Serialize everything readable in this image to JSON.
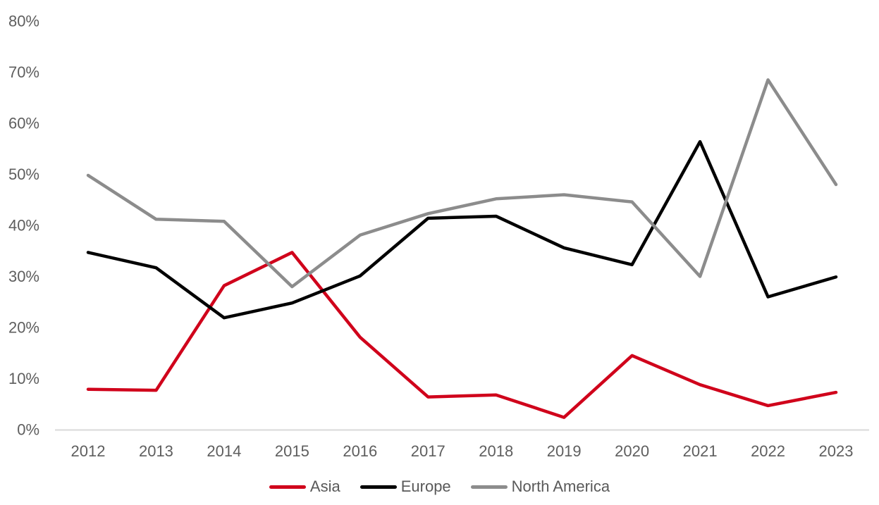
{
  "chart_data": {
    "type": "line",
    "title": "",
    "xlabel": "",
    "ylabel": "",
    "categories": [
      "2012",
      "2013",
      "2014",
      "2015",
      "2016",
      "2017",
      "2018",
      "2019",
      "2020",
      "2021",
      "2022",
      "2023"
    ],
    "series": [
      {
        "name": "Asia",
        "color": "#D0021B",
        "values": [
          7.9,
          7.7,
          28.2,
          34.7,
          18.1,
          6.4,
          6.8,
          2.4,
          14.5,
          8.8,
          4.7,
          7.3
        ]
      },
      {
        "name": "Europe",
        "color": "#000000",
        "values": [
          34.7,
          31.7,
          21.9,
          24.8,
          30.1,
          41.4,
          41.8,
          35.6,
          32.3,
          56.4,
          26.0,
          29.9
        ]
      },
      {
        "name": "North America",
        "color": "#8C8C8C",
        "values": [
          49.8,
          41.2,
          40.8,
          28.0,
          38.1,
          42.3,
          45.2,
          46.0,
          44.6,
          30.0,
          68.5,
          48.0
        ]
      }
    ],
    "ylim": [
      0,
      80
    ],
    "ytick_step": 10,
    "ytick_labels": [
      "0%",
      "10%",
      "20%",
      "30%",
      "40%",
      "50%",
      "60%",
      "70%",
      "80%"
    ],
    "grid": false,
    "legend_position": "bottom",
    "axis_line_color": "#D9D9D9",
    "tick_label_color": "#5E5E5E",
    "legend_text_color": "#595959"
  }
}
